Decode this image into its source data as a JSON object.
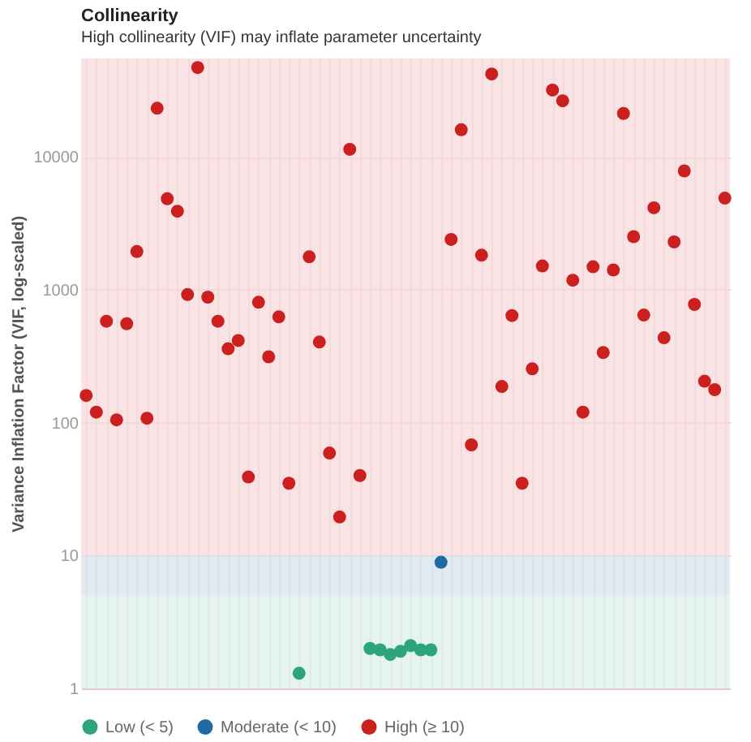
{
  "chart_data": {
    "type": "scatter",
    "title": "Collinearity",
    "subtitle": "High collinearity (VIF) may inflate parameter uncertainty",
    "ylabel": "Variance Inflation Factor (VIF, log-scaled)",
    "categories": [
      null,
      null,
      null,
      null,
      null,
      null,
      null,
      null,
      null,
      null,
      null,
      null,
      null,
      null,
      null,
      null,
      null,
      null,
      null,
      null,
      null,
      null,
      null,
      null,
      null,
      null,
      null,
      null,
      null,
      null,
      null,
      null,
      null,
      null,
      null,
      null,
      null,
      null,
      null,
      null,
      null,
      null,
      null,
      null,
      null,
      null,
      null,
      null,
      null,
      null,
      null,
      null,
      null,
      null,
      null,
      null,
      null,
      null,
      null,
      null,
      null,
      null,
      null,
      null
    ],
    "series": [
      {
        "name": "Low (< 5)",
        "color": "#2ca57a",
        "values": [
          null,
          null,
          null,
          null,
          null,
          null,
          null,
          null,
          null,
          null,
          null,
          null,
          null,
          null,
          null,
          null,
          null,
          null,
          null,
          null,
          null,
          1.3,
          null,
          null,
          null,
          null,
          null,
          null,
          2.0,
          1.95,
          1.8,
          1.9,
          2.1,
          1.95,
          1.95,
          null,
          null,
          null,
          null,
          null,
          null,
          null,
          null,
          null,
          null,
          null,
          null,
          null,
          null,
          null,
          null,
          null,
          null,
          null,
          null,
          null,
          null,
          null,
          null,
          null,
          null,
          null,
          null,
          null
        ]
      },
      {
        "name": "Moderate (< 10)",
        "color": "#1f6aa5",
        "values": [
          null,
          null,
          null,
          null,
          null,
          null,
          null,
          null,
          null,
          null,
          null,
          null,
          null,
          null,
          null,
          null,
          null,
          null,
          null,
          null,
          null,
          null,
          null,
          null,
          null,
          null,
          null,
          null,
          null,
          null,
          null,
          null,
          null,
          null,
          null,
          8.9,
          null,
          null,
          null,
          null,
          null,
          null,
          null,
          null,
          null,
          null,
          null,
          null,
          null,
          null,
          null,
          null,
          null,
          null,
          null,
          null,
          null,
          null,
          null,
          null,
          null,
          null,
          null,
          null
        ]
      },
      {
        "name": "High (≥ 10)",
        "color": "#cc1f1f",
        "values": [
          160,
          120,
          580,
          105,
          555,
          1940,
          108,
          23200,
          4840,
          3900,
          920,
          47000,
          880,
          580,
          360,
          415,
          39,
          805,
          313,
          625,
          35,
          null,
          1770,
          404,
          59,
          19.5,
          11400,
          40,
          null,
          null,
          null,
          null,
          null,
          null,
          null,
          null,
          2390,
          16000,
          68,
          1820,
          42000,
          187,
          640,
          35,
          254,
          1510,
          31800,
          26400,
          1180,
          120,
          1490,
          337,
          1410,
          21200,
          2510,
          645,
          4140,
          435,
          2290,
          7840,
          775,
          205,
          177,
          4890
        ]
      }
    ],
    "log": "y",
    "ylim": [
      1,
      55000
    ],
    "yticks": [
      1,
      10,
      100,
      1000,
      10000
    ],
    "bands": [
      {
        "axis": "y",
        "from": 1,
        "to": 5,
        "color": "#e0f1ea"
      },
      {
        "axis": "y",
        "from": 5,
        "to": 10,
        "color": "#dbe6ef"
      },
      {
        "axis": "y",
        "from": 10,
        "to": 55000,
        "color": "#f8dcdd"
      }
    ],
    "grid": true,
    "legend": "bottom",
    "marker": "circle",
    "tick_labels": "y"
  }
}
